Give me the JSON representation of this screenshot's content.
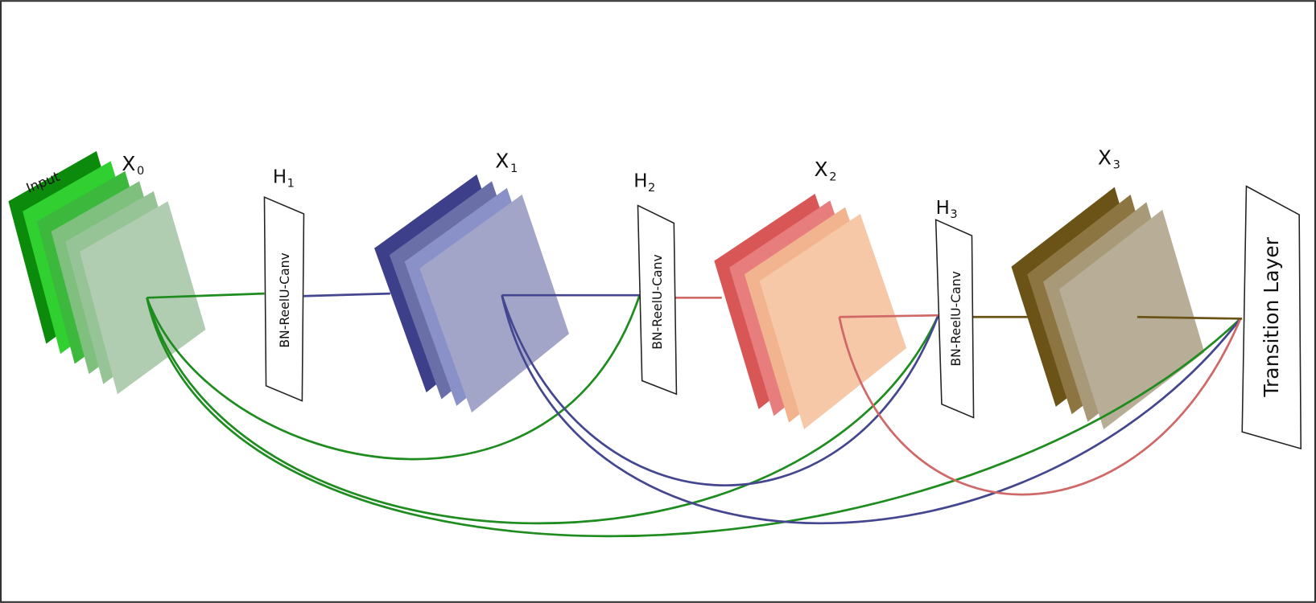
{
  "labels": {
    "input": "Input",
    "x0": "X",
    "x0_sub": "0",
    "x1": "X",
    "x1_sub": "1",
    "x2": "X",
    "x2_sub": "2",
    "x3": "X",
    "x3_sub": "3",
    "h1": "H",
    "h1_sub": "1",
    "h2": "H",
    "h2_sub": "2",
    "h3": "H",
    "h3_sub": "3",
    "h1_box": "BN-ReelU-Canv",
    "h2_box": "BN-ReelU-Canv",
    "h3_box": "BN-ReelU-Canv",
    "transition": "Transition Layer"
  },
  "colors": {
    "green": "#1e8c1e",
    "blue": "#44478f",
    "red": "#d06868",
    "brown": "#6b5318",
    "green_planes": [
      "#0b8a0b",
      "#2fd02f",
      "#3cb83c",
      "#7fc07f",
      "#96c496",
      "#b1cdb1"
    ],
    "blue_planes": [
      "#3d3f8a",
      "#6a6fa8",
      "#8a90c8",
      "#a3a5c8"
    ],
    "red_planes": [
      "#d85656",
      "#e87d7d",
      "#f2b38f",
      "#f6c8a8"
    ],
    "brown_planes": [
      "#6b5318",
      "#8c7540",
      "#a89a78",
      "#b8ae98"
    ]
  }
}
